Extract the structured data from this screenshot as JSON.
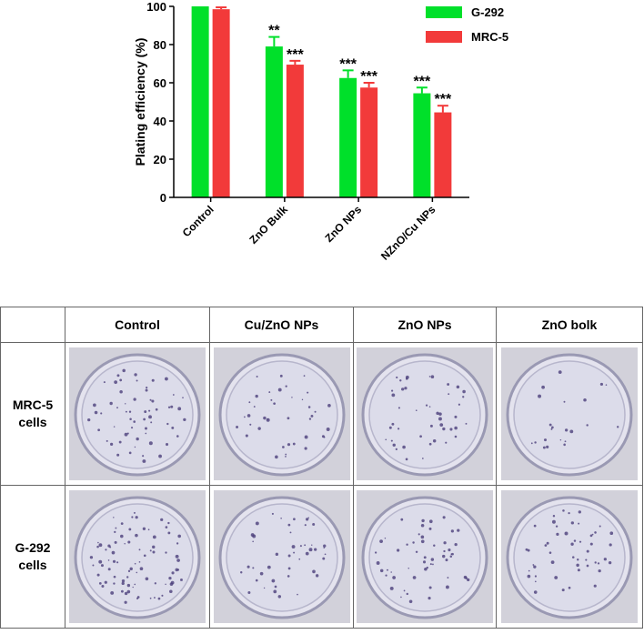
{
  "colors": {
    "g292": "#00e02a",
    "mrc5": "#f23a3a",
    "axis": "#000000"
  },
  "chart_data": {
    "type": "bar",
    "title": "",
    "xlabel": "",
    "ylabel": "Plating efficiency (%)",
    "ylim": [
      0,
      100
    ],
    "yticks": [
      "0",
      "20",
      "40",
      "60",
      "80",
      "100"
    ],
    "categories": [
      "Control",
      "ZnO Bulk",
      "ZnO NPs",
      "NZnO/Cu NPs"
    ],
    "series": [
      {
        "name": "G-292",
        "values": [
          100,
          79,
          62.5,
          54.5
        ],
        "errors": [
          0,
          5,
          4,
          3
        ],
        "sig": [
          "",
          "**",
          "***",
          "***"
        ]
      },
      {
        "name": "MRC-5",
        "values": [
          98.5,
          69.5,
          57.5,
          44.5
        ],
        "errors": [
          1,
          2,
          2.5,
          3.5
        ],
        "sig": [
          "",
          "***",
          "***",
          "***"
        ]
      }
    ],
    "legend_position": "top-right"
  },
  "table": {
    "headers": [
      "Control",
      "Cu/ZnO NPs",
      "ZnO NPs",
      "ZnO bolk"
    ],
    "rows": [
      {
        "label_line1": "MRC-5",
        "label_line2": "cells"
      },
      {
        "label_line1": "G-292",
        "label_line2": "cells"
      }
    ]
  }
}
